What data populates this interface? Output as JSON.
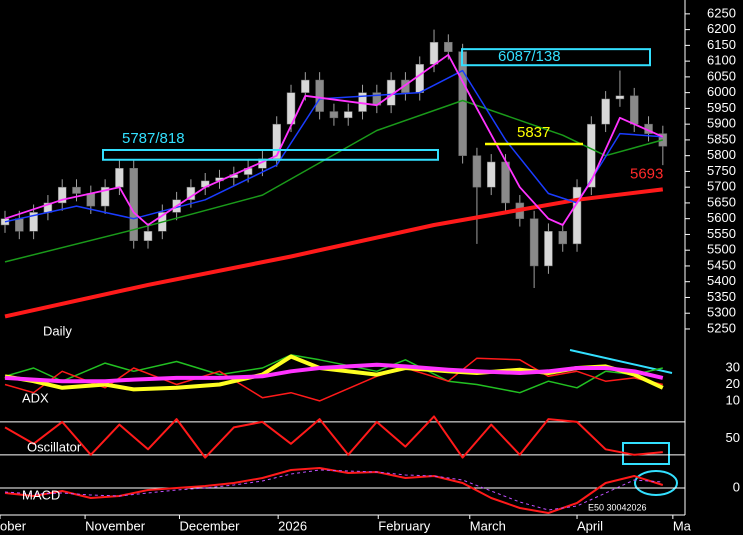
{
  "chart_data": [
    {
      "type": "candlestick",
      "title": "Daily",
      "open": [
        5580,
        5600,
        5560,
        5620,
        5650,
        5700,
        5680,
        5640,
        5700,
        5760,
        5530,
        5560,
        5620,
        5660,
        5700,
        5720,
        5730,
        5740,
        5760,
        5790,
        5900,
        6000,
        6040,
        5940,
        5920,
        5940,
        6000,
        5960,
        6040,
        6000,
        6090,
        6160,
        6130,
        5800,
        5700,
        5780,
        5650,
        5600,
        5450,
        5560,
        5520,
        5700,
        5900,
        5980,
        5990,
        5900,
        5870
      ],
      "high": [
        5625,
        5625,
        5645,
        5675,
        5725,
        5725,
        5705,
        5725,
        5785,
        5785,
        5585,
        5645,
        5685,
        5725,
        5745,
        5755,
        5765,
        5785,
        5815,
        5925,
        6025,
        6065,
        6065,
        5965,
        5965,
        6025,
        6025,
        6065,
        6065,
        6115,
        6200,
        6185,
        6155,
        5825,
        5805,
        5805,
        5675,
        5625,
        5585,
        5585,
        5725,
        5925,
        6005,
        6070,
        6015,
        5925,
        5895
      ],
      "low": [
        5555,
        5535,
        5535,
        5595,
        5625,
        5655,
        5615,
        5615,
        5675,
        5505,
        5505,
        5535,
        5595,
        5635,
        5675,
        5695,
        5705,
        5715,
        5735,
        5765,
        5875,
        5975,
        5915,
        5895,
        5895,
        5915,
        5935,
        5935,
        5975,
        5975,
        6065,
        6105,
        5775,
        5520,
        5675,
        5625,
        5575,
        5380,
        5425,
        5495,
        5495,
        5675,
        5875,
        5955,
        5875,
        5845,
        5770
      ],
      "close": [
        5600,
        5560,
        5620,
        5650,
        5700,
        5680,
        5640,
        5700,
        5760,
        5530,
        5560,
        5620,
        5660,
        5700,
        5720,
        5730,
        5740,
        5760,
        5790,
        5900,
        6000,
        6040,
        5940,
        5920,
        5940,
        6000,
        5960,
        6040,
        6000,
        6090,
        6160,
        6130,
        5800,
        5700,
        5780,
        5650,
        5600,
        5450,
        5560,
        5520,
        5700,
        5900,
        5980,
        5990,
        5900,
        5870,
        5830
      ],
      "up_color": "#d8d8d8",
      "down_color": "#8a8a8a",
      "wick_color": "#a0a0a0",
      "series": [
        {
          "color": "#ff1a1a",
          "width": 4,
          "x": [
            0,
            10,
            20,
            30,
            40,
            46
          ],
          "values": [
            5290,
            5390,
            5480,
            5580,
            5660,
            5693
          ]
        },
        {
          "color": "#1a9a1a",
          "width": 1.5,
          "x": [
            0,
            9,
            18,
            26,
            32,
            39,
            42,
            46
          ],
          "values": [
            5463,
            5565,
            5675,
            5880,
            5975,
            5865,
            5800,
            5850
          ]
        },
        {
          "color": "#1a3cff",
          "width": 1.5,
          "x": [
            0,
            5,
            9,
            14,
            19,
            22,
            29,
            32,
            35,
            38,
            40,
            43,
            46
          ],
          "values": [
            5590,
            5640,
            5600,
            5660,
            5770,
            5980,
            6000,
            6070,
            5850,
            5680,
            5650,
            5870,
            5860
          ]
        },
        {
          "color": "#ff33ff",
          "width": 1.8,
          "x": [
            0,
            4,
            8,
            9,
            10,
            14,
            19,
            21,
            26,
            31,
            33,
            36,
            38,
            39,
            41,
            43,
            46
          ],
          "values": [
            5600,
            5660,
            5700,
            5620,
            5580,
            5700,
            5800,
            5990,
            5960,
            6120,
            5950,
            5700,
            5600,
            5580,
            5720,
            5920,
            5860
          ]
        }
      ],
      "annotations": [
        {
          "label": "5787/818",
          "low": 5787,
          "high": 5818,
          "color": "#33e0ff"
        },
        {
          "label": "6087/138",
          "low": 6087,
          "high": 6138,
          "color": "#33e0ff"
        },
        {
          "label": "5837",
          "value": 5837,
          "color": "#ffff00"
        },
        {
          "label": "5693",
          "value": 5693,
          "color": "#ff2a2a"
        }
      ],
      "ylim": [
        5215,
        6294
      ],
      "yticks": [
        5250,
        5300,
        5350,
        5400,
        5450,
        5500,
        5550,
        5600,
        5650,
        5700,
        5750,
        5800,
        5850,
        5900,
        5950,
        6000,
        6050,
        6100,
        6150,
        6200,
        6250
      ]
    },
    {
      "type": "line",
      "title": "ADX",
      "series": [
        {
          "color": "#22c022",
          "width": 1.5,
          "x": [
            0,
            2,
            4,
            7,
            9,
            12,
            15,
            18,
            20,
            22,
            26,
            28,
            31,
            33,
            36,
            38,
            40,
            42,
            44,
            46
          ],
          "values": [
            25,
            30,
            22,
            33,
            28,
            34,
            26,
            30,
            38,
            35,
            28,
            35,
            22,
            20,
            15,
            22,
            18,
            28,
            26,
            30
          ]
        },
        {
          "color": "#ff1a1a",
          "width": 1.5,
          "x": [
            0,
            2,
            4,
            7,
            9,
            12,
            15,
            18,
            20,
            22,
            26,
            28,
            31,
            33,
            36,
            38,
            40,
            42,
            44,
            46
          ],
          "values": [
            20,
            15,
            28,
            18,
            30,
            20,
            28,
            12,
            15,
            10,
            25,
            30,
            22,
            36,
            35,
            25,
            28,
            22,
            24,
            20
          ]
        },
        {
          "color": "#ffff22",
          "width": 4,
          "x": [
            0,
            2,
            4,
            7,
            9,
            12,
            15,
            18,
            20,
            22,
            26,
            28,
            31,
            33,
            36,
            38,
            40,
            42,
            44,
            46
          ],
          "values": [
            25,
            22,
            18,
            20,
            17,
            18,
            20,
            26,
            37,
            30,
            26,
            30,
            28,
            27,
            29,
            27,
            30,
            31,
            26,
            18
          ]
        },
        {
          "color": "#ff33ff",
          "width": 4,
          "x": [
            0,
            2,
            4,
            7,
            9,
            12,
            15,
            18,
            20,
            22,
            26,
            28,
            31,
            33,
            36,
            38,
            40,
            42,
            44,
            46
          ],
          "values": [
            24,
            23,
            22,
            22,
            23,
            24,
            24,
            25,
            28,
            30,
            32,
            31,
            29,
            28,
            27,
            28,
            30,
            30,
            28,
            24
          ]
        }
      ],
      "ylim": [
        4.5,
        44
      ],
      "yticks": [
        10,
        20,
        30
      ]
    },
    {
      "type": "line",
      "title": "Oscillator",
      "series": [
        {
          "color": "#ff1a1a",
          "width": 2,
          "x": [
            0,
            2,
            4,
            6,
            8,
            10,
            12,
            14,
            16,
            18,
            20,
            22,
            24,
            26,
            28,
            30,
            32,
            34,
            36,
            38,
            40,
            42,
            44,
            46
          ],
          "values": [
            70,
            40,
            80,
            20,
            75,
            30,
            85,
            15,
            70,
            80,
            40,
            85,
            20,
            80,
            35,
            90,
            15,
            75,
            20,
            85,
            80,
            30,
            20,
            25
          ]
        }
      ],
      "levels": [
        20,
        80
      ],
      "ylim": [
        -4,
        98
      ],
      "yticks": [
        50
      ]
    },
    {
      "type": "line",
      "title": "MACD",
      "footnote": "E50 30042026",
      "series": [
        {
          "color": "#ff1a1a",
          "width": 2,
          "x": [
            0,
            2,
            4,
            6,
            8,
            10,
            12,
            14,
            16,
            18,
            20,
            22,
            24,
            26,
            28,
            30,
            32,
            34,
            36,
            38,
            40,
            42,
            44,
            46
          ],
          "values": [
            -5,
            -8,
            -3,
            -10,
            -8,
            -2,
            0,
            2,
            5,
            10,
            18,
            20,
            15,
            16,
            10,
            12,
            5,
            -10,
            -20,
            -25,
            -15,
            5,
            12,
            3
          ]
        },
        {
          "color": "#c050ff",
          "width": 1,
          "dash": true,
          "x": [
            0,
            2,
            4,
            6,
            8,
            10,
            12,
            14,
            16,
            18,
            20,
            22,
            24,
            26,
            28,
            30,
            32,
            34,
            36,
            38,
            40,
            42,
            44,
            46
          ],
          "values": [
            -4,
            -6,
            -5,
            -7,
            -8,
            -5,
            -2,
            0,
            3,
            7,
            14,
            18,
            17,
            16,
            13,
            12,
            8,
            -3,
            -14,
            -22,
            -18,
            -5,
            8,
            6
          ]
        }
      ],
      "ylim": [
        -27,
        22
      ],
      "yticks": [
        0
      ],
      "xlim": [
        -0.35,
        47.55
      ],
      "xticks": [
        {
          "value": -0.35,
          "label": "ober"
        },
        {
          "value": 5.6,
          "label": "November"
        },
        {
          "value": 12.2,
          "label": "December"
        },
        {
          "value": 19.1,
          "label": "2026"
        },
        {
          "value": 26.1,
          "label": "February"
        },
        {
          "value": 32.5,
          "label": "March"
        },
        {
          "value": 40,
          "label": "April"
        },
        {
          "value": 46.7,
          "label": "Ma"
        }
      ]
    }
  ]
}
